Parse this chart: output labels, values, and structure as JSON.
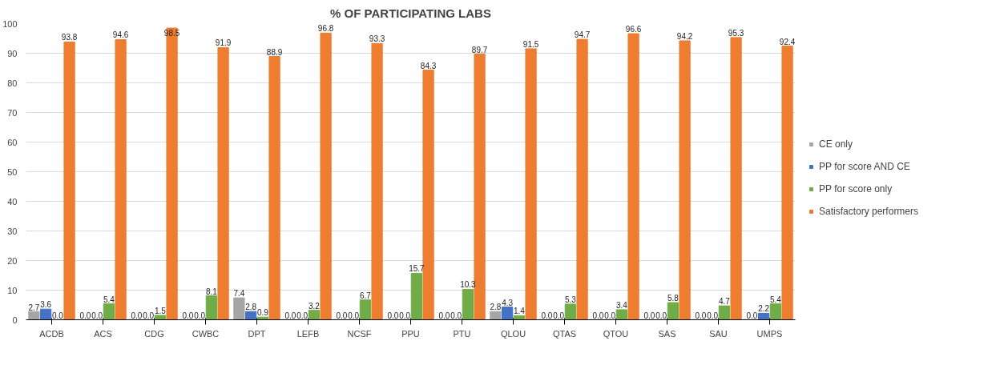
{
  "chart_data": {
    "type": "bar",
    "title": "% OF PARTICIPATING LABS",
    "categories": [
      "ACDB",
      "ACS",
      "CDG",
      "CWBC",
      "DPT",
      "LEFB",
      "NCSF",
      "PPU",
      "PTU",
      "QLOU",
      "QTAS",
      "QTOU",
      "SAS",
      "SAU",
      "UMPS"
    ],
    "series": [
      {
        "name": "CE only",
        "color": "#a5a5a5",
        "values": [
          2.7,
          0.0,
          0.0,
          0.0,
          7.4,
          0.0,
          0.0,
          0.0,
          0.0,
          2.8,
          0.0,
          0.0,
          0.0,
          0.0,
          0.0
        ],
        "value_labels": [
          "2.7",
          "0.0",
          "0.0",
          "0.0",
          "7.4",
          "0.0",
          "0.0",
          "0.0",
          "0.0",
          "2.8",
          "0.0",
          "0.0",
          "0.0",
          "0.0",
          "0.0"
        ]
      },
      {
        "name": "PP for score AND CE",
        "color": "#4472c4",
        "values": [
          3.6,
          0.0,
          0.0,
          0.0,
          2.8,
          0.0,
          0.0,
          0.0,
          0.0,
          4.3,
          0.0,
          0.0,
          0.0,
          0.0,
          2.2
        ],
        "value_labels": [
          "3.6",
          "0.0",
          "0.0",
          "0.0",
          "2.8",
          "0.0",
          "0.0",
          "0.0",
          "0.0",
          "4.3",
          "0.0",
          "0.0",
          "0.0",
          "0.0",
          "2.2"
        ]
      },
      {
        "name": "PP for score only",
        "color": "#70ad47",
        "values": [
          0.0,
          5.4,
          1.5,
          8.1,
          0.9,
          3.2,
          6.7,
          15.7,
          10.3,
          1.4,
          5.3,
          3.4,
          5.8,
          4.7,
          5.4
        ],
        "value_labels": [
          "0.0",
          "5.4",
          "1.5",
          "8.1",
          "0.9",
          "3.2",
          "6.7",
          "15.7",
          "10.3",
          "1.4",
          "5.3",
          "3.4",
          "5.8",
          "4.7",
          "5.4"
        ]
      },
      {
        "name": "Satisfactory performers",
        "color": "#ed7d31",
        "values": [
          93.8,
          94.6,
          98.5,
          91.9,
          88.9,
          96.8,
          93.3,
          84.3,
          89.7,
          91.5,
          94.7,
          96.6,
          94.2,
          95.3,
          92.4
        ],
        "value_labels": [
          "93.8",
          "94.6",
          "98.5",
          "91.9",
          "88.9",
          "96.8",
          "93.3",
          "84.3",
          "89.7",
          "91.5",
          "94.7",
          "96.6",
          "94.2",
          "95.3",
          "92.4"
        ]
      }
    ],
    "ylim": [
      0,
      100
    ],
    "yticks": [
      0,
      10,
      20,
      30,
      40,
      50,
      60,
      70,
      80,
      90,
      100
    ],
    "grid": "y",
    "legend": "right",
    "data_labels": true
  }
}
